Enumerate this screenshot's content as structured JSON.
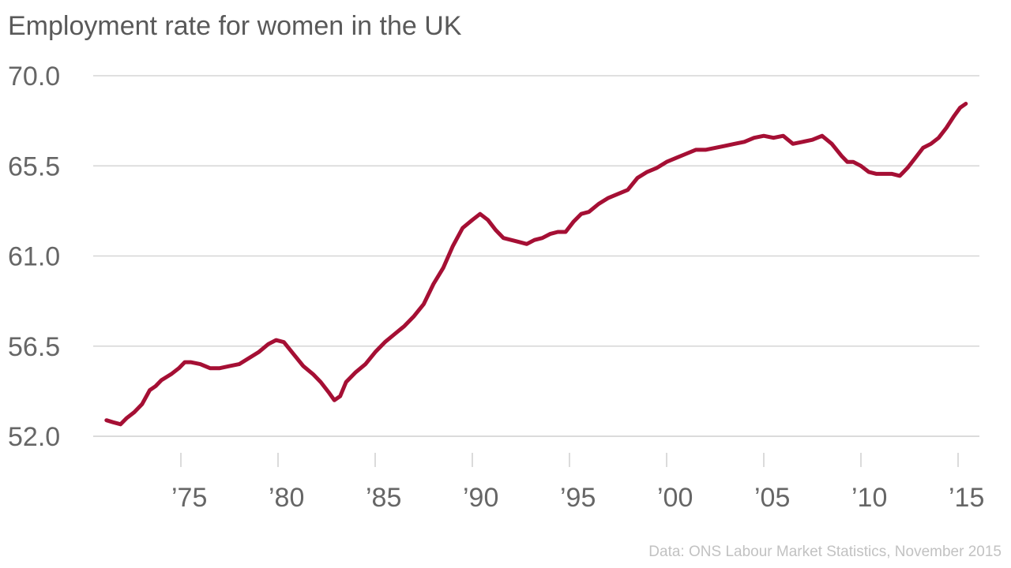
{
  "chart_data": {
    "type": "line",
    "title": "Employment rate for women in the UK",
    "source": "Data: ONS Labour Market Statistics, November 2015",
    "xlabel": "",
    "ylabel": "",
    "xlim": [
      1971,
      2015.75
    ],
    "ylim": [
      52.0,
      70.0
    ],
    "yticks": [
      {
        "value": 52.0,
        "label": "52.0"
      },
      {
        "value": 56.5,
        "label": "56.5"
      },
      {
        "value": 61.0,
        "label": "61.0"
      },
      {
        "value": 65.5,
        "label": "65.5"
      },
      {
        "value": 70.0,
        "label": "70.0"
      }
    ],
    "xticks": [
      {
        "value": 1975,
        "label": "’75"
      },
      {
        "value": 1980,
        "label": "’80"
      },
      {
        "value": 1985,
        "label": "’85"
      },
      {
        "value": 1990,
        "label": "’90"
      },
      {
        "value": 1995,
        "label": "’95"
      },
      {
        "value": 2000,
        "label": "’00"
      },
      {
        "value": 2005,
        "label": "’05"
      },
      {
        "value": 2010,
        "label": "’10"
      },
      {
        "value": 2015,
        "label": "’15"
      }
    ],
    "grid": true,
    "color": "#a50f34",
    "x": [
      1971.17,
      1971.5,
      1971.9,
      1972.2,
      1972.6,
      1973.0,
      1973.4,
      1973.7,
      1974.0,
      1974.5,
      1974.9,
      1975.2,
      1975.5,
      1976.0,
      1976.5,
      1977.0,
      1977.5,
      1978.0,
      1978.5,
      1979.0,
      1979.5,
      1979.9,
      1980.3,
      1980.8,
      1981.3,
      1981.8,
      1982.2,
      1982.6,
      1982.9,
      1983.2,
      1983.5,
      1984.0,
      1984.5,
      1985.0,
      1985.5,
      1986.0,
      1986.5,
      1987.0,
      1987.5,
      1988.0,
      1988.5,
      1989.0,
      1989.5,
      1990.0,
      1990.4,
      1990.8,
      1991.2,
      1991.6,
      1992.0,
      1992.4,
      1992.8,
      1993.2,
      1993.6,
      1994.0,
      1994.4,
      1994.8,
      1995.2,
      1995.6,
      1996.0,
      1996.5,
      1997.0,
      1997.5,
      1998.0,
      1998.5,
      1999.0,
      1999.5,
      2000.0,
      2000.5,
      2001.0,
      2001.5,
      2002.0,
      2002.5,
      2003.0,
      2003.5,
      2004.0,
      2004.5,
      2005.0,
      2005.5,
      2006.0,
      2006.5,
      2007.0,
      2007.5,
      2008.0,
      2008.5,
      2009.0,
      2009.3,
      2009.6,
      2010.0,
      2010.4,
      2010.8,
      2011.2,
      2011.6,
      2012.0,
      2012.4,
      2012.8,
      2013.2,
      2013.6,
      2014.0,
      2014.4,
      2014.8,
      2015.1,
      2015.4
    ],
    "values": [
      52.8,
      52.7,
      52.6,
      52.9,
      53.2,
      53.6,
      54.3,
      54.5,
      54.8,
      55.1,
      55.4,
      55.7,
      55.7,
      55.6,
      55.4,
      55.4,
      55.5,
      55.6,
      55.9,
      56.2,
      56.6,
      56.8,
      56.7,
      56.1,
      55.5,
      55.1,
      54.7,
      54.2,
      53.8,
      54.0,
      54.7,
      55.2,
      55.6,
      56.2,
      56.7,
      57.1,
      57.5,
      58.0,
      58.6,
      59.6,
      60.4,
      61.5,
      62.4,
      62.8,
      63.1,
      62.8,
      62.3,
      61.9,
      61.8,
      61.7,
      61.6,
      61.8,
      61.9,
      62.1,
      62.2,
      62.2,
      62.7,
      63.1,
      63.2,
      63.6,
      63.9,
      64.1,
      64.3,
      64.9,
      65.2,
      65.4,
      65.7,
      65.9,
      66.1,
      66.3,
      66.3,
      66.4,
      66.5,
      66.6,
      66.7,
      66.9,
      67.0,
      66.9,
      67.0,
      66.6,
      66.7,
      66.8,
      67.0,
      66.6,
      66.0,
      65.7,
      65.7,
      65.5,
      65.2,
      65.1,
      65.1,
      65.1,
      65.0,
      65.4,
      65.9,
      66.4,
      66.6,
      66.9,
      67.4,
      68.0,
      68.4,
      68.6
    ]
  }
}
